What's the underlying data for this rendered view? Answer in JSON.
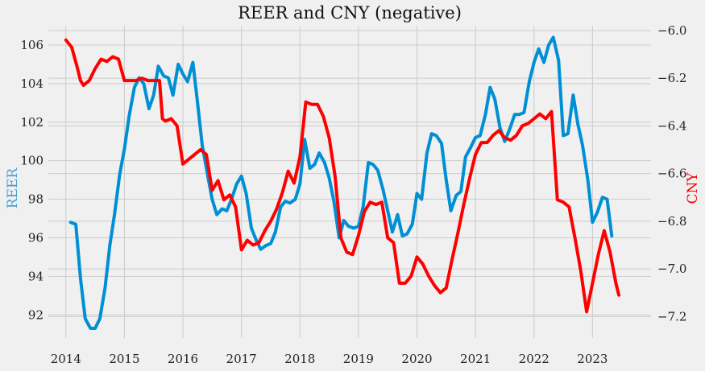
{
  "chart_data": {
    "type": "line",
    "title": "REER and CNY (negative)",
    "left_axis": {
      "label": "REER",
      "color": "#4a9fd4",
      "ylim": [
        90.8,
        107.0
      ],
      "ticks": [
        92,
        94,
        96,
        98,
        100,
        102,
        104,
        106
      ]
    },
    "right_axis": {
      "label": "CNY",
      "color": "#ff0000",
      "ylim": [
        -7.29,
        -5.98
      ],
      "ticks": [
        -6.0,
        -6.2,
        -6.4,
        -6.6,
        -6.8,
        -7.0,
        -7.2
      ],
      "tick_labels": [
        "−6.0",
        "−6.2",
        "−6.4",
        "−6.6",
        "−6.8",
        "−7.0",
        "−7.2"
      ]
    },
    "x_axis": {
      "xlim": [
        2013.7,
        2024.0
      ],
      "ticks": [
        2014,
        2015,
        2016,
        2017,
        2018,
        2019,
        2020,
        2021,
        2022,
        2023
      ]
    },
    "grid": true,
    "series": [
      {
        "name": "REER",
        "axis": "left",
        "color": "#008fd5",
        "x": [
          2014.08,
          2014.17,
          2014.25,
          2014.33,
          2014.42,
          2014.5,
          2014.58,
          2014.67,
          2014.75,
          2014.83,
          2014.92,
          2015.0,
          2015.08,
          2015.17,
          2015.25,
          2015.33,
          2015.42,
          2015.5,
          2015.58,
          2015.67,
          2015.75,
          2015.83,
          2015.92,
          2016.0,
          2016.08,
          2016.17,
          2016.25,
          2016.33,
          2016.42,
          2016.5,
          2016.58,
          2016.67,
          2016.75,
          2016.83,
          2016.92,
          2017.0,
          2017.08,
          2017.17,
          2017.25,
          2017.33,
          2017.42,
          2017.5,
          2017.58,
          2017.67,
          2017.75,
          2017.83,
          2017.92,
          2018.0,
          2018.08,
          2018.17,
          2018.25,
          2018.33,
          2018.42,
          2018.5,
          2018.58,
          2018.67,
          2018.75,
          2018.83,
          2018.92,
          2019.0,
          2019.08,
          2019.17,
          2019.25,
          2019.33,
          2019.42,
          2019.5,
          2019.58,
          2019.67,
          2019.75,
          2019.83,
          2019.92,
          2020.0,
          2020.08,
          2020.17,
          2020.25,
          2020.33,
          2020.42,
          2020.5,
          2020.58,
          2020.67,
          2020.75,
          2020.83,
          2020.92,
          2021.0,
          2021.08,
          2021.17,
          2021.25,
          2021.33,
          2021.42,
          2021.5,
          2021.58,
          2021.67,
          2021.75,
          2021.83,
          2021.92,
          2022.0,
          2022.08,
          2022.17,
          2022.25,
          2022.33,
          2022.42,
          2022.5,
          2022.58,
          2022.67,
          2022.75,
          2022.83,
          2022.92,
          2023.0,
          2023.08,
          2023.17,
          2023.25,
          2023.33
        ],
        "values": [
          96.8,
          96.7,
          93.9,
          91.8,
          91.3,
          91.3,
          91.8,
          93.4,
          95.6,
          97.2,
          99.3,
          100.6,
          102.3,
          103.8,
          104.3,
          104.0,
          102.7,
          103.4,
          104.9,
          104.4,
          104.3,
          103.4,
          105.0,
          104.5,
          104.1,
          105.1,
          103.0,
          100.8,
          99.3,
          98.0,
          97.2,
          97.5,
          97.4,
          98.0,
          98.8,
          99.2,
          98.3,
          96.5,
          95.9,
          95.4,
          95.6,
          95.7,
          96.3,
          97.6,
          97.9,
          97.8,
          98.0,
          98.8,
          101.1,
          99.6,
          99.8,
          100.4,
          99.9,
          99.1,
          97.9,
          96.0,
          96.9,
          96.6,
          96.5,
          96.6,
          97.6,
          99.9,
          99.8,
          99.5,
          98.5,
          97.4,
          96.3,
          97.2,
          96.1,
          96.2,
          96.7,
          98.3,
          98.0,
          100.4,
          101.4,
          101.3,
          100.9,
          99.0,
          97.4,
          98.2,
          98.4,
          100.2,
          100.7,
          101.2,
          101.3,
          102.4,
          103.8,
          103.2,
          101.7,
          101.0,
          101.6,
          102.4,
          102.4,
          102.5,
          104.1,
          105.1,
          105.8,
          105.1,
          106.0,
          106.4,
          105.2,
          101.3,
          101.4,
          103.4,
          101.9,
          100.8,
          99.0,
          96.8,
          97.3,
          98.1,
          98.0,
          96.1
        ]
      },
      {
        "name": "CNY (negative)",
        "axis": "right",
        "color": "#ff0000",
        "x": [
          2014.0,
          2014.1,
          2014.2,
          2014.25,
          2014.3,
          2014.4,
          2014.5,
          2014.6,
          2014.7,
          2014.8,
          2014.9,
          2015.0,
          2015.1,
          2015.2,
          2015.3,
          2015.4,
          2015.5,
          2015.6,
          2015.65,
          2015.7,
          2015.8,
          2015.9,
          2016.0,
          2016.1,
          2016.2,
          2016.3,
          2016.4,
          2016.5,
          2016.6,
          2016.7,
          2016.8,
          2016.9,
          2017.0,
          2017.1,
          2017.2,
          2017.3,
          2017.4,
          2017.5,
          2017.6,
          2017.7,
          2017.8,
          2017.9,
          2018.0,
          2018.1,
          2018.2,
          2018.3,
          2018.4,
          2018.5,
          2018.6,
          2018.7,
          2018.8,
          2018.9,
          2019.0,
          2019.1,
          2019.2,
          2019.3,
          2019.4,
          2019.5,
          2019.6,
          2019.7,
          2019.8,
          2019.9,
          2020.0,
          2020.1,
          2020.2,
          2020.3,
          2020.4,
          2020.5,
          2020.6,
          2020.7,
          2020.8,
          2020.9,
          2021.0,
          2021.1,
          2021.2,
          2021.3,
          2021.4,
          2021.5,
          2021.6,
          2021.7,
          2021.8,
          2021.9,
          2022.0,
          2022.1,
          2022.2,
          2022.3,
          2022.4,
          2022.5,
          2022.6,
          2022.7,
          2022.8,
          2022.9,
          2023.0,
          2023.1,
          2023.2,
          2023.3,
          2023.4,
          2023.45
        ],
        "values": [
          -6.04,
          -6.07,
          -6.16,
          -6.21,
          -6.23,
          -6.21,
          -6.16,
          -6.12,
          -6.13,
          -6.11,
          -6.12,
          -6.21,
          -6.21,
          -6.21,
          -6.2,
          -6.21,
          -6.21,
          -6.21,
          -6.37,
          -6.38,
          -6.37,
          -6.4,
          -6.56,
          -6.54,
          -6.52,
          -6.5,
          -6.52,
          -6.67,
          -6.63,
          -6.71,
          -6.69,
          -6.74,
          -6.92,
          -6.88,
          -6.9,
          -6.89,
          -6.84,
          -6.8,
          -6.75,
          -6.68,
          -6.59,
          -6.64,
          -6.53,
          -6.3,
          -6.31,
          -6.31,
          -6.36,
          -6.45,
          -6.61,
          -6.87,
          -6.93,
          -6.94,
          -6.86,
          -6.76,
          -6.72,
          -6.73,
          -6.72,
          -6.87,
          -6.89,
          -7.06,
          -7.06,
          -7.03,
          -6.95,
          -6.98,
          -7.03,
          -7.07,
          -7.1,
          -7.08,
          -6.96,
          -6.85,
          -6.73,
          -6.62,
          -6.52,
          -6.47,
          -6.47,
          -6.44,
          -6.42,
          -6.45,
          -6.46,
          -6.44,
          -6.4,
          -6.39,
          -6.37,
          -6.35,
          -6.37,
          -6.34,
          -6.71,
          -6.72,
          -6.74,
          -6.87,
          -7.01,
          -7.18,
          -7.06,
          -6.94,
          -6.84,
          -6.93,
          -7.06,
          -7.11
        ]
      }
    ]
  }
}
